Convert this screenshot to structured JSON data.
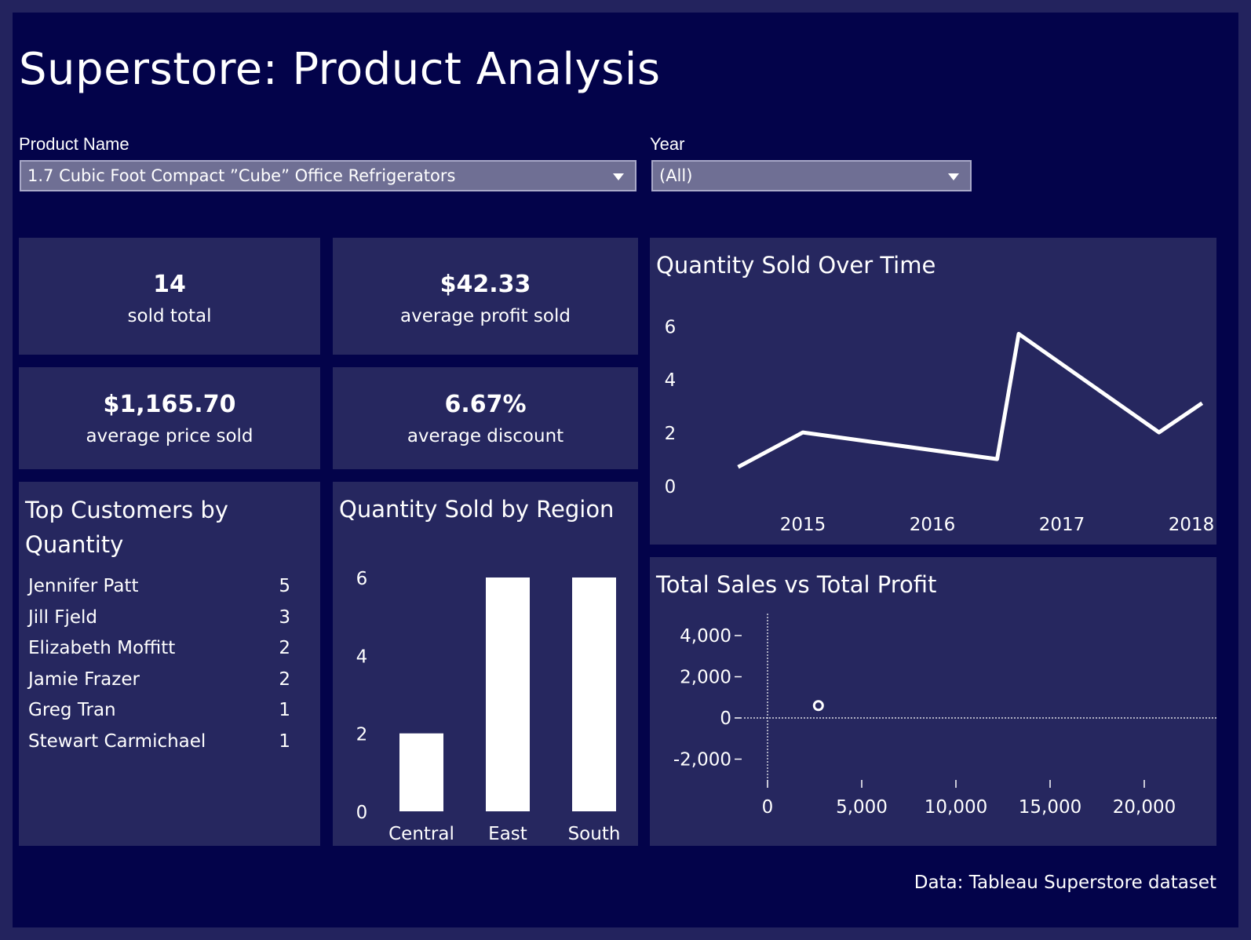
{
  "title": "Superstore: Product Analysis",
  "filters": {
    "product": {
      "label": "Product Name",
      "value": "1.7 Cubic Foot Compact ”Cube” Office Refrigerators"
    },
    "year": {
      "label": "Year",
      "value": "(All)"
    }
  },
  "kpis": {
    "sold_total": {
      "value": "14",
      "label": "sold total"
    },
    "avg_profit": {
      "value": "$42.33",
      "label": "average profit sold"
    },
    "avg_price": {
      "value": "$1,165.70",
      "label": "average price sold"
    },
    "avg_discount": {
      "value": "6.67%",
      "label": "average discount"
    }
  },
  "top_customers": {
    "title": "Top Customers by Quantity",
    "rows": [
      {
        "name": "Jennifer Patt",
        "qty": "5"
      },
      {
        "name": "Jill Fjeld",
        "qty": "3"
      },
      {
        "name": "Elizabeth Moffitt",
        "qty": "2"
      },
      {
        "name": "Jamie Frazer",
        "qty": "2"
      },
      {
        "name": "Greg Tran",
        "qty": "1"
      },
      {
        "name": "Stewart Carmichael",
        "qty": "1"
      }
    ]
  },
  "footer": "Data: Tableau Superstore dataset",
  "colors": {
    "background": "#03034a",
    "panel": "#26275f",
    "frame": "#23235e",
    "mark": "#ffffff",
    "select": "#6f6f94"
  },
  "icons": {
    "dropdown": "caret-down-icon"
  },
  "chart_data": [
    {
      "type": "line",
      "title": "Quantity Sold Over Time",
      "x": [
        "2014-07",
        "2015-01",
        "2016-07",
        "2016-09",
        "2017-10",
        "2018-02"
      ],
      "y": [
        0.7,
        2,
        1,
        5.7,
        2,
        3.1
      ],
      "x_ticks": [
        "2015",
        "2016",
        "2017",
        "2018"
      ],
      "y_ticks": [
        "0",
        "2",
        "4",
        "6"
      ],
      "ylim": [
        0,
        6.6
      ],
      "grid": false
    },
    {
      "type": "bar",
      "title": "Quantity Sold by Region",
      "categories": [
        "Central",
        "East",
        "South"
      ],
      "values": [
        2,
        6,
        6
      ],
      "y_ticks": [
        "0",
        "2",
        "4",
        "6"
      ],
      "ylim": [
        0,
        6
      ],
      "grid": false
    },
    {
      "type": "scatter",
      "title": "Total Sales vs Total Profit",
      "points": [
        {
          "x": 2700,
          "y": 600
        }
      ],
      "x_ticks": [
        "0",
        "5,000",
        "10,000",
        "15,000",
        "20,000"
      ],
      "y_ticks": [
        "4,000",
        "2,000",
        "0",
        "-2,000"
      ],
      "xlim": [
        0,
        23000
      ],
      "ylim": [
        -3000,
        5000
      ],
      "zero_lines": true
    }
  ]
}
